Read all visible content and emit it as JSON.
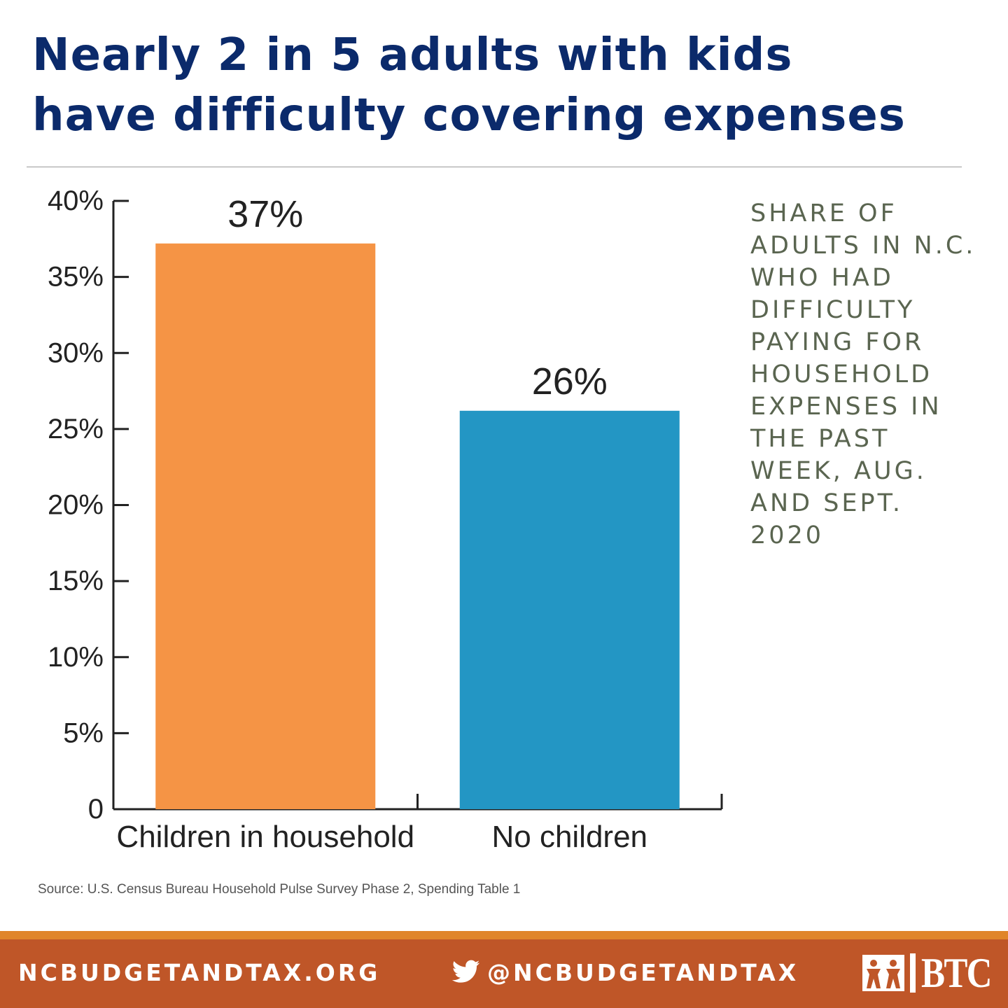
{
  "headline": {
    "line1": "Nearly 2 in 5 adults with kids",
    "line2": "have difficulty covering expenses"
  },
  "side_note": {
    "lines": [
      "SHARE OF",
      "ADULTS IN N.C.",
      "WHO HAD",
      "DIFFICULTY",
      "PAYING FOR",
      "HOUSEHOLD",
      "EXPENSES IN",
      "THE PAST",
      "WEEK, AUG.",
      "AND SEPT.",
      "2020"
    ]
  },
  "source": "Source: U.S. Census Bureau Household Pulse Survey Phase 2, Spending Table 1",
  "footer": {
    "site": "NCBUDGETANDTAX.ORG",
    "handle": "@NCBUDGETANDTAX",
    "brand": "BTC",
    "twitter_icon": "twitter-bird-icon",
    "logo_icon": "btc-figures-logo-icon"
  },
  "colors": {
    "headline": "#0b2a6b",
    "side_note": "#5a6550",
    "footer_bg": "#bf5628",
    "footer_stripe": "#e0852a"
  },
  "chart_data": {
    "type": "bar",
    "categories": [
      "Children in household",
      "No children"
    ],
    "values": [
      37.2,
      26.2
    ],
    "value_labels": [
      "37%",
      "26%"
    ],
    "colors": [
      "#f59445",
      "#2396c4"
    ],
    "ylim": [
      0,
      40
    ],
    "yticks": [
      0,
      5,
      10,
      15,
      20,
      25,
      30,
      35,
      40
    ],
    "ytick_labels": [
      "0",
      "5%",
      "10%",
      "15%",
      "20%",
      "25%",
      "30%",
      "35%",
      "40%"
    ],
    "grid": false,
    "legend": "none"
  }
}
